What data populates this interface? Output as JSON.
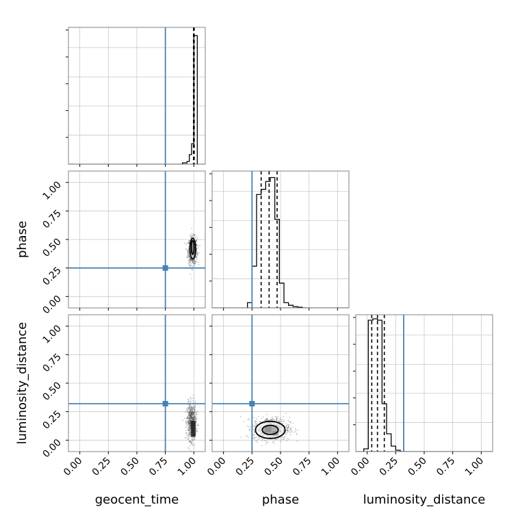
{
  "chart_data": {
    "type": "corner",
    "parameters": [
      "geocent_time",
      "phase",
      "luminosity_distance"
    ],
    "axis_range": [
      -0.1,
      1.1
    ],
    "ticks": [
      0.0,
      0.25,
      0.5,
      0.75,
      1.0
    ],
    "tick_labels": [
      "0.00",
      "0.25",
      "0.50",
      "0.75",
      "1.00"
    ],
    "xlabels": [
      "geocent_time",
      "phase",
      "luminosity_distance"
    ],
    "ylabels": [
      "",
      "phase",
      "luminosity_distance"
    ],
    "grid": true,
    "colors": {
      "truth": "#4682b4",
      "hist": "#000000",
      "points": "#555555",
      "frame": "#808080",
      "grid": "#c8c8c8"
    },
    "truths": {
      "geocent_time": 0.75,
      "phase": 0.25,
      "luminosity_distance": 0.32
    },
    "histograms": [
      {
        "parameter": "geocent_time",
        "bin_edges": [
          0.88,
          0.9,
          0.92,
          0.94,
          0.96,
          0.98,
          1.0,
          1.03
        ],
        "counts": [
          0.0,
          0.01,
          0.01,
          0.02,
          0.07,
          0.15,
          0.94
        ],
        "ymax": 1.0,
        "quantiles": [
          0.997,
          1.0,
          1.003
        ]
      },
      {
        "parameter": "phase",
        "bin_edges": [
          0.21,
          0.25,
          0.29,
          0.33,
          0.37,
          0.41,
          0.45,
          0.49,
          0.53,
          0.57,
          0.61,
          0.65,
          0.69,
          0.73
        ],
        "counts": [
          0.04,
          0.32,
          0.87,
          0.91,
          0.97,
          1.0,
          0.68,
          0.19,
          0.04,
          0.02,
          0.01,
          0.005,
          0.0
        ],
        "ymax": 1.05,
        "quantiles": [
          0.33,
          0.4,
          0.47
        ]
      },
      {
        "parameter": "luminosity_distance",
        "bin_edges": [
          -0.03,
          0.01,
          0.05,
          0.09,
          0.13,
          0.17,
          0.21,
          0.25,
          0.29,
          0.33
        ],
        "counts": [
          0.02,
          0.96,
          0.97,
          0.96,
          0.35,
          0.13,
          0.04,
          0.01,
          0.0
        ],
        "ymax": 1.0,
        "quantiles": [
          0.04,
          0.09,
          0.15
        ]
      }
    ],
    "scatter_panels": [
      {
        "x_parameter": "geocent_time",
        "y_parameter": "phase",
        "center": [
          0.99,
          0.4
        ],
        "spread": [
          0.02,
          0.06
        ],
        "contours": [
          {
            "center": [
              0.99,
              0.42
            ],
            "radii": [
              0.025,
              0.09
            ]
          },
          {
            "center": [
              0.99,
              0.43
            ],
            "radii": [
              0.012,
              0.06
            ]
          }
        ],
        "dense_blocks": [
          [
            0.985,
            0.38,
            0.02,
            0.07
          ]
        ]
      },
      {
        "x_parameter": "geocent_time",
        "y_parameter": "luminosity_distance",
        "center": [
          0.98,
          0.16
        ],
        "spread": [
          0.02,
          0.08
        ],
        "contours": [],
        "dense_blocks": [
          [
            0.975,
            0.03,
            0.04,
            0.14
          ]
        ]
      },
      {
        "x_parameter": "phase",
        "y_parameter": "luminosity_distance",
        "center": [
          0.42,
          0.1
        ],
        "spread": [
          0.08,
          0.05
        ],
        "contours": [
          {
            "center": [
              0.41,
              0.09
            ],
            "radii": [
              0.13,
              0.075
            ]
          },
          {
            "center": [
              0.41,
              0.09
            ],
            "radii": [
              0.07,
              0.04
            ]
          }
        ],
        "dense_blocks": [
          [
            0.36,
            0.07,
            0.06,
            0.05
          ],
          [
            0.43,
            0.04,
            0.05,
            0.04
          ]
        ]
      }
    ]
  }
}
